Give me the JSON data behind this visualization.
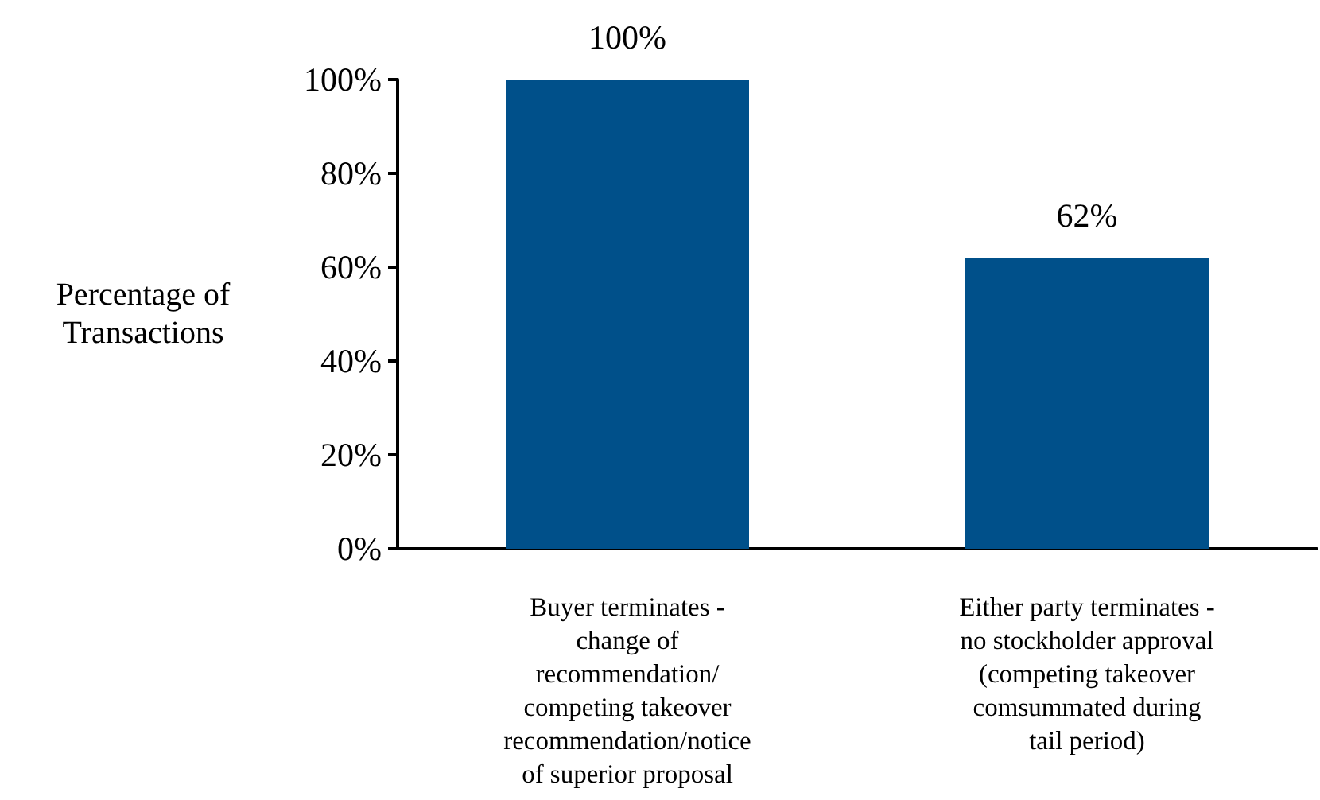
{
  "chart_data": {
    "type": "bar",
    "ylabel": "Percentage of\nTransactions",
    "categories": [
      "Buyer terminates -\nchange of\nrecommendation/\ncompeting takeover\nrecommendation/notice\nof superior proposal",
      "Either party terminates -\nno stockholder approval\n(competing takeover\ncomsummated during\ntail period)"
    ],
    "values": [
      100,
      62
    ],
    "color": "#00508a",
    "value_labels": [
      "100%",
      "62%"
    ],
    "ylim": [
      0,
      100
    ],
    "yticks": [
      {
        "value": 0,
        "label": "0%"
      },
      {
        "value": 20,
        "label": "20%"
      },
      {
        "value": 40,
        "label": "40%"
      },
      {
        "value": 60,
        "label": "60%"
      },
      {
        "value": 80,
        "label": "80%"
      },
      {
        "value": 100,
        "label": "100%"
      }
    ]
  }
}
